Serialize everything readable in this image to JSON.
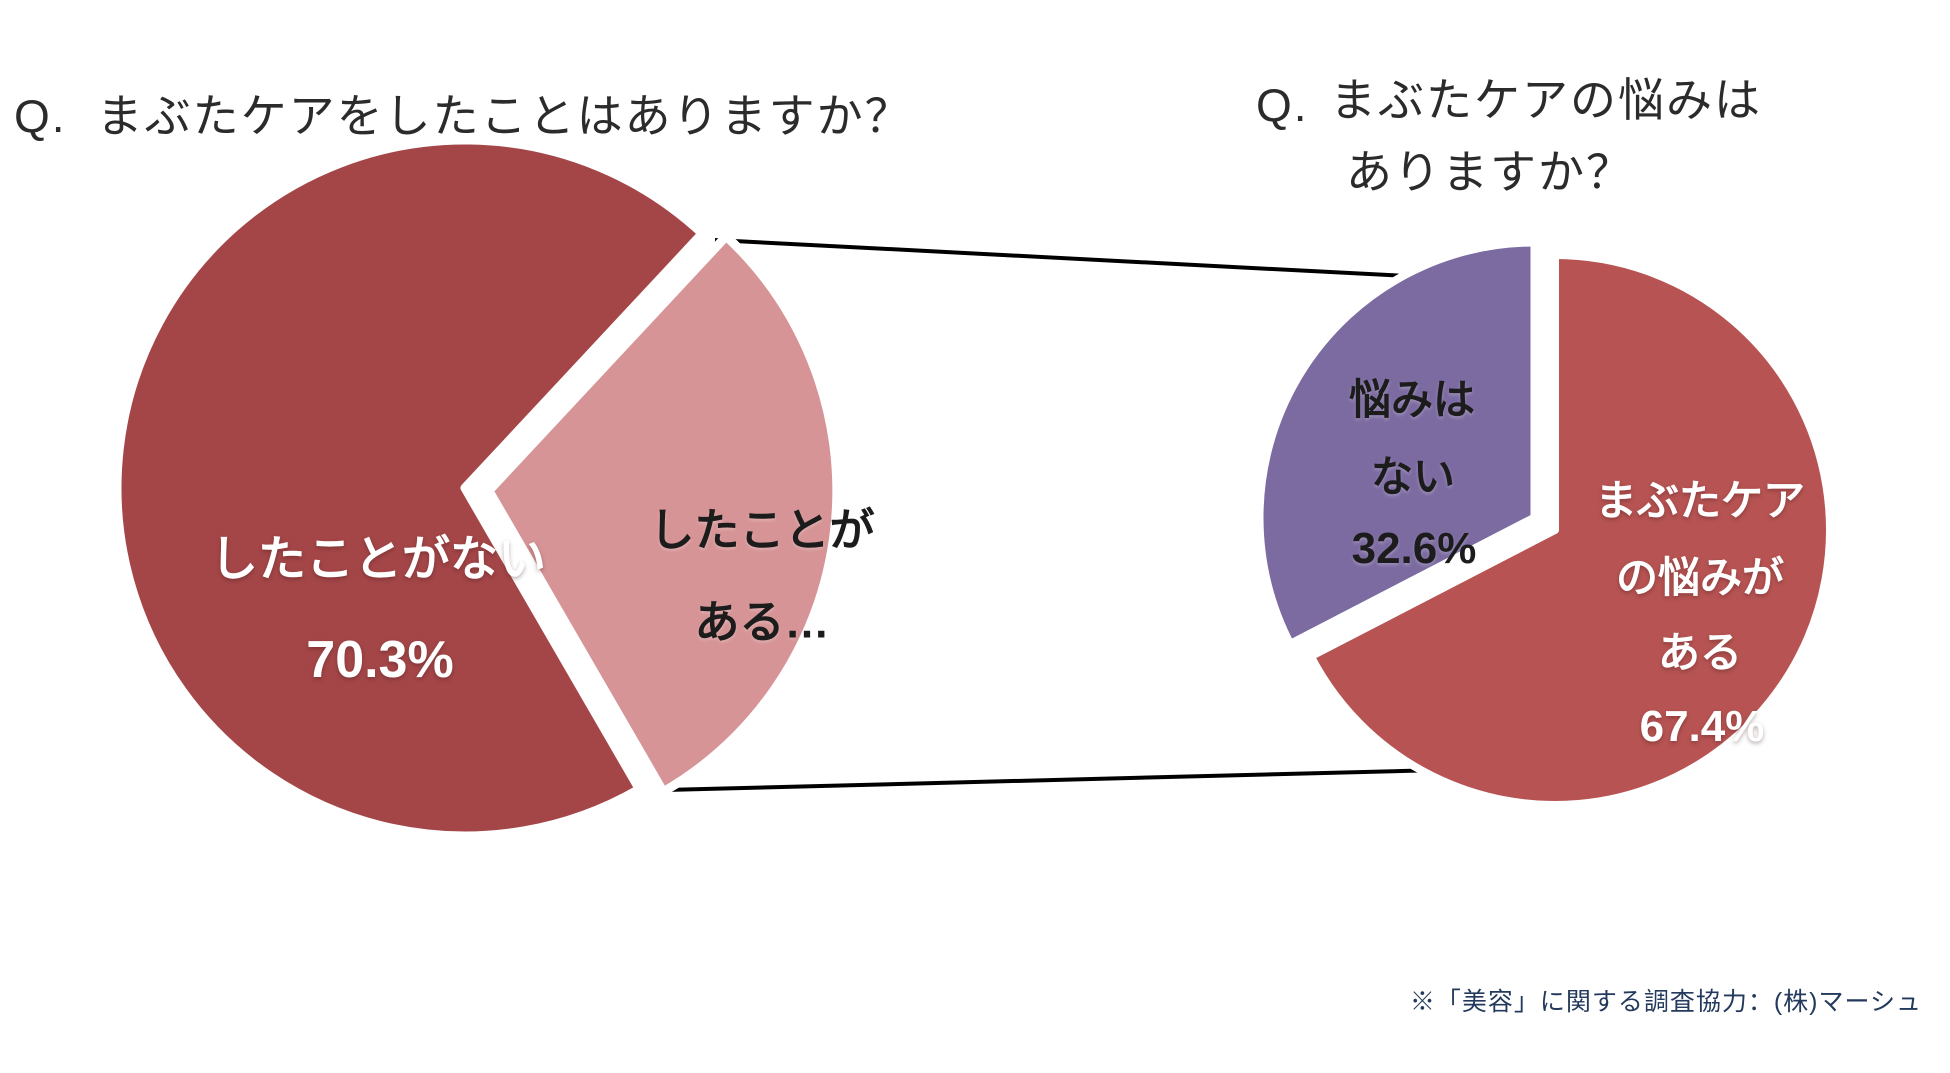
{
  "left_chart": {
    "question_prefix": "Q.",
    "question": "まぶたケアをしたことはありますか？"
  },
  "right_chart": {
    "question_prefix": "Q.",
    "question_line1": "まぶたケアの悩みは",
    "question_line2": "ありますか？"
  },
  "footnote": "※「美容」に関する調査協力：(株)マーシュ",
  "colors": {
    "left_pie_main": "#a44648",
    "left_pie_secondary": "#d69496",
    "right_pie_main": "#b75453",
    "right_pie_secondary": "#7c6ba1",
    "title_text": "#2b2b2b",
    "footnote_text": "#233a5c",
    "connector_line": "#000000"
  },
  "chart_data": [
    {
      "type": "pie",
      "title": "Q. まぶたケアをしたことはありますか？",
      "legend": "none",
      "data_labels": "inside",
      "slices": [
        {
          "label": "したことがない",
          "value": 70.3,
          "value_label": "70.3%",
          "color": "#a44648",
          "text_color": "#ffffff",
          "label_lines": [
            "したことがない"
          ],
          "exploded": false
        },
        {
          "label": "したことがある…",
          "value": 29.7,
          "value_label": "",
          "color": "#d69496",
          "text_color": "#1c1c1c",
          "label_lines": [
            "したことが",
            "ある…"
          ],
          "exploded": true
        }
      ]
    },
    {
      "type": "pie",
      "title": "Q. まぶたケアの悩みはありますか？",
      "legend": "none",
      "data_labels": "inside",
      "slices": [
        {
          "label": "まぶたケアの悩みがある",
          "value": 67.4,
          "value_label": "67.4%",
          "color": "#b75453",
          "text_color": "#ffffff",
          "label_lines": [
            "まぶたケア",
            "の悩みが",
            "ある"
          ],
          "exploded": false
        },
        {
          "label": "悩みはない",
          "value": 32.6,
          "value_label": "32.6%",
          "color": "#7c6ba1",
          "text_color": "#161616",
          "label_lines": [
            "悩みは",
            "ない"
          ],
          "exploded": true
        }
      ]
    }
  ]
}
